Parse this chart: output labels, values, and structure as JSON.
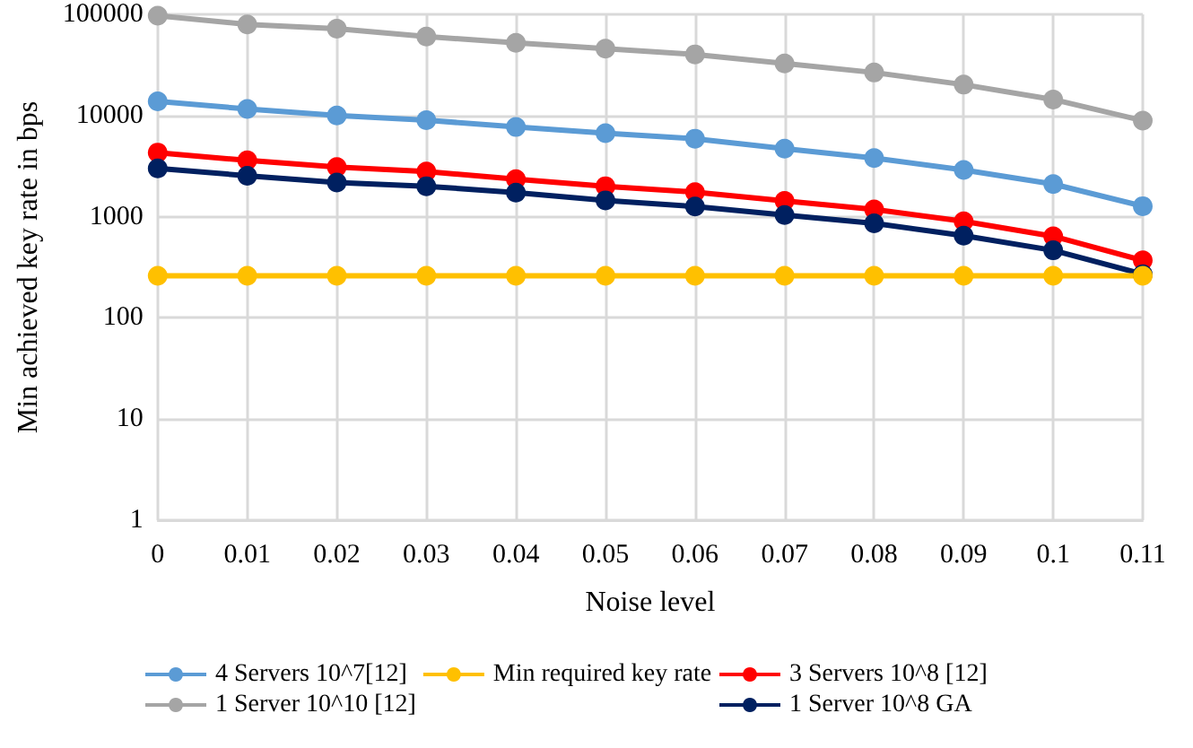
{
  "chart_data": {
    "type": "line",
    "xlabel": "Noise level",
    "ylabel": "Min achieved key rate in bps",
    "categories": [
      "0",
      "0.01",
      "0.02",
      "0.03",
      "0.04",
      "0.05",
      "0.06",
      "0.07",
      "0.08",
      "0.09",
      "0.1",
      "0.11"
    ],
    "series": [
      {
        "name": "4 Servers 10^7[12]",
        "color": "#5b9bd5",
        "values": [
          13800,
          11600,
          10000,
          9000,
          7700,
          6700,
          5900,
          4700,
          3800,
          2900,
          2100,
          1270
        ]
      },
      {
        "name": "3 Servers 10^8 [12]",
        "color": "#ff0000",
        "values": [
          4300,
          3600,
          3100,
          2800,
          2350,
          2000,
          1750,
          1430,
          1180,
          900,
          640,
          370
        ]
      },
      {
        "name": "1 Server 10^10 [12]",
        "color": "#a5a5a5",
        "values": [
          97000,
          79600,
          72000,
          60400,
          52300,
          45800,
          40200,
          32700,
          26600,
          20200,
          14400,
          8900
        ]
      },
      {
        "name": "1 Server 10^8 GA",
        "color": "#002060",
        "values": [
          3000,
          2540,
          2180,
          2000,
          1730,
          1450,
          1260,
          1040,
          860,
          650,
          465,
          270
        ]
      },
      {
        "name": "Min required key rate",
        "color": "#ffc000",
        "values": [
          260,
          260,
          260,
          260,
          260,
          260,
          260,
          260,
          260,
          260,
          260,
          260
        ]
      }
    ],
    "ylim": [
      1,
      100000
    ],
    "yticks": [
      1,
      10,
      100,
      1000,
      10000,
      100000
    ],
    "log": "y",
    "grid": true,
    "legend": "bottom",
    "marker": "circle",
    "line_style": "solid"
  }
}
